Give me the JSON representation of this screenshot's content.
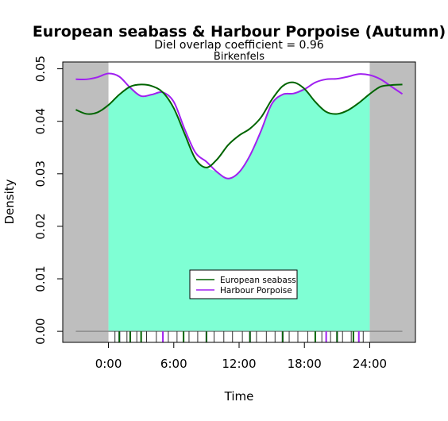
{
  "chart_data": {
    "type": "line",
    "title": "European seabass & Harbour Porpoise (Autumn)",
    "subtitle": "Diel overlap coefficient =  0.96",
    "site": "Birkenfels",
    "xlabel": "Time",
    "ylabel": "Density",
    "xlim": [
      -4.2,
      28.2
    ],
    "ylim": [
      -0.0021,
      0.0513
    ],
    "x_ticks": [
      0,
      6,
      12,
      18,
      24
    ],
    "x_tick_labels": [
      "0:00",
      "6:00",
      "12:00",
      "18:00",
      "24:00"
    ],
    "y_ticks": [
      0.0,
      0.01,
      0.02,
      0.03,
      0.04,
      0.05
    ],
    "y_tick_labels": [
      "0.00",
      "0.01",
      "0.02",
      "0.03",
      "0.04",
      "0.05"
    ],
    "shaded_night": [
      [
        -3,
        0
      ],
      [
        24,
        27
      ]
    ],
    "overlap_fill_color": "#7fffd4",
    "night_color": "#bebebe",
    "legend_position": "center-bottom",
    "series": [
      {
        "name": "European seabass",
        "color": "#006400",
        "x": [
          -3,
          -2,
          -1,
          0,
          1,
          2,
          3,
          4,
          5,
          6,
          7,
          8,
          9,
          10,
          11,
          12,
          13,
          14,
          15,
          16,
          17,
          18,
          19,
          20,
          21,
          22,
          23,
          24,
          25,
          26,
          27
        ],
        "y": [
          0.0422,
          0.0414,
          0.0417,
          0.0431,
          0.0451,
          0.0466,
          0.047,
          0.0467,
          0.0455,
          0.0425,
          0.0376,
          0.0328,
          0.0312,
          0.0328,
          0.0355,
          0.0373,
          0.0386,
          0.0407,
          0.0441,
          0.0467,
          0.0474,
          0.0462,
          0.0437,
          0.0418,
          0.0414,
          0.0421,
          0.0435,
          0.0452,
          0.0466,
          0.0469,
          0.047
        ]
      },
      {
        "name": "Harbour Porpoise",
        "color": "#a020f0",
        "x": [
          -3,
          -2,
          -1,
          0,
          1,
          2,
          3,
          4,
          5,
          6,
          7,
          8,
          9,
          10,
          11,
          12,
          13,
          14,
          15,
          16,
          17,
          18,
          19,
          20,
          21,
          22,
          23,
          24,
          25,
          26,
          27
        ],
        "y": [
          0.048,
          0.048,
          0.0484,
          0.0491,
          0.0485,
          0.0464,
          0.0448,
          0.0451,
          0.0455,
          0.0437,
          0.0385,
          0.034,
          0.0323,
          0.0303,
          0.0291,
          0.0303,
          0.0335,
          0.0381,
          0.0433,
          0.0451,
          0.0453,
          0.0461,
          0.0474,
          0.048,
          0.0481,
          0.0485,
          0.049,
          0.0488,
          0.048,
          0.0466,
          0.0452
        ]
      }
    ],
    "rug": {
      "European seabass": [
        1,
        2,
        3,
        6.9,
        9,
        13,
        16,
        19,
        21,
        22.5
      ],
      "Harbour Porpoise": [
        1,
        2,
        5,
        9,
        13,
        16,
        20,
        21,
        23
      ]
    },
    "rug_ticks_black": [
      0.6,
      1.7,
      2.6,
      3.5,
      4.4,
      5.5,
      6.3,
      7.4,
      8.2,
      9.7,
      10.6,
      11.4,
      12.3,
      13.6,
      14.5,
      15.3,
      16.6,
      17.4,
      18.3,
      19.6,
      20.4,
      21.5,
      22.3,
      23.4
    ]
  }
}
